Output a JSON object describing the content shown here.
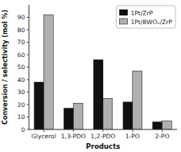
{
  "chart_data": {
    "type": "bar",
    "xlabel": "Products",
    "ylabel": "Conversion / selectivity (mol %)",
    "categories": [
      "Glycerol",
      "1,3-PDO",
      "1,2-PDO",
      "1-PO",
      "2-PO"
    ],
    "series": [
      {
        "name": "1Pt/ZrP",
        "color": "#111111",
        "values": [
          38,
          17,
          56,
          22,
          6
        ]
      },
      {
        "name": "1Pt/8WOₓ/ZrP",
        "color": "#b0b0b0",
        "values": [
          92,
          21,
          25,
          47,
          7
        ]
      }
    ],
    "ylim": [
      0,
      100
    ],
    "yticks": [
      0,
      10,
      20,
      30,
      40,
      50,
      60,
      70,
      80,
      90
    ],
    "grid": false,
    "legend": "upper-right"
  }
}
